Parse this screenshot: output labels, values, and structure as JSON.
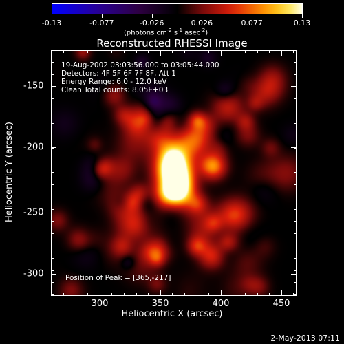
{
  "colorbar": {
    "tick_labels": [
      "-0.13",
      "-0.077",
      "-0.026",
      "0.026",
      "0.077",
      "0.13"
    ],
    "units": {
      "prefix": "(photons cm",
      "exp1": "-2",
      "mid1": " s",
      "exp2": "-1",
      "mid2": " asec",
      "exp3": "-2",
      "suffix": ")"
    }
  },
  "title": "Reconstructed RHESSI Image",
  "info": {
    "time": "19-Aug-2002 03:03:56.000 to 03:05:44.000",
    "detectors": "Detectors: 4F 5F 6F 7F 8F, Att 1",
    "energy": "Energy Range: 6.0 - 12.0 keV",
    "method": "Clean    Total counts: 8.05E+03"
  },
  "peak_text": "Position of Peak = [365,-217]",
  "axes": {
    "xlabel": "Heliocentric X (arcsec)",
    "ylabel": "Heliocentric Y (arcsec)",
    "xticks": [
      "300",
      "350",
      "400",
      "450"
    ],
    "yticks": [
      "-150",
      "-200",
      "-250",
      "-300"
    ]
  },
  "timestamp": "2-May-2013 07:11"
}
